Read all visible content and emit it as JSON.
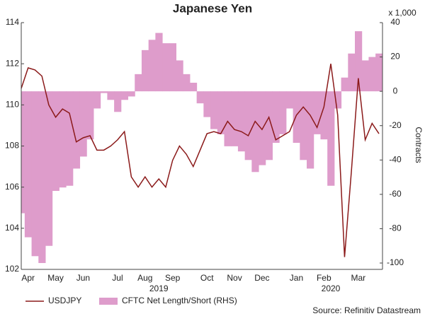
{
  "chart_data": {
    "type": "line_area",
    "title": "Japanese Yen",
    "y2_unit": "x 1,000",
    "y2_label": "Contracts",
    "source": "Source: Refinitiv Datastream",
    "categories": [
      null,
      "Apr",
      null,
      null,
      null,
      "May",
      null,
      null,
      null,
      "Jun",
      null,
      null,
      null,
      null,
      "Jul",
      null,
      null,
      null,
      "Aug",
      null,
      null,
      null,
      "Sep",
      null,
      null,
      null,
      null,
      "Oct",
      null,
      null,
      null,
      "Nov",
      null,
      null,
      null,
      "Dec",
      null,
      null,
      null,
      null,
      "Jan",
      null,
      null,
      null,
      "Feb",
      null,
      null,
      null,
      null,
      "Mar",
      null,
      null,
      null
    ],
    "year_labels": [
      {
        "index": 20,
        "label": "2019"
      },
      {
        "index": 45,
        "label": "2020"
      }
    ],
    "series": [
      {
        "name": "USDJPY",
        "type": "line",
        "color": "#8b1a1a",
        "axis": "y",
        "values": [
          110.8,
          111.8,
          111.7,
          111.4,
          110.0,
          109.4,
          109.8,
          109.6,
          108.2,
          108.4,
          108.5,
          107.8,
          107.8,
          108.0,
          108.3,
          108.7,
          106.5,
          106.0,
          106.5,
          106.0,
          106.4,
          106.0,
          107.3,
          108.0,
          107.6,
          107.0,
          107.8,
          108.6,
          108.7,
          108.6,
          109.2,
          108.8,
          108.7,
          108.5,
          109.2,
          108.8,
          109.4,
          108.3,
          108.5,
          108.7,
          109.5,
          109.9,
          109.5,
          108.9,
          109.9,
          112.0,
          109.5,
          102.6,
          106.8,
          111.3,
          108.3,
          109.1,
          108.6
        ]
      },
      {
        "name": "CFTC Net Length/Short (RHS)",
        "type": "area",
        "color": "#de9ccb",
        "axis": "y2",
        "values": [
          -71,
          -85,
          -96,
          -100,
          -90,
          -58,
          -56,
          -55,
          -45,
          -38,
          -28,
          -10,
          -1,
          -5,
          -12,
          -5,
          -3,
          10,
          24,
          30,
          34,
          28,
          28,
          18,
          10,
          5,
          -7,
          -15,
          -22,
          -25,
          -32,
          -32,
          -35,
          -40,
          -47,
          -43,
          -40,
          -30,
          -25,
          -10,
          -30,
          -40,
          -45,
          -25,
          -28,
          -55,
          -10,
          8,
          22,
          35,
          18,
          20,
          22
        ]
      }
    ],
    "ylim": [
      102,
      114
    ],
    "yticks": [
      102,
      104,
      106,
      108,
      110,
      112,
      114
    ],
    "y2lim": [
      -103.7,
      40
    ],
    "y2ticks": [
      -100,
      -80,
      -60,
      -40,
      -20,
      0,
      20,
      40
    ]
  }
}
